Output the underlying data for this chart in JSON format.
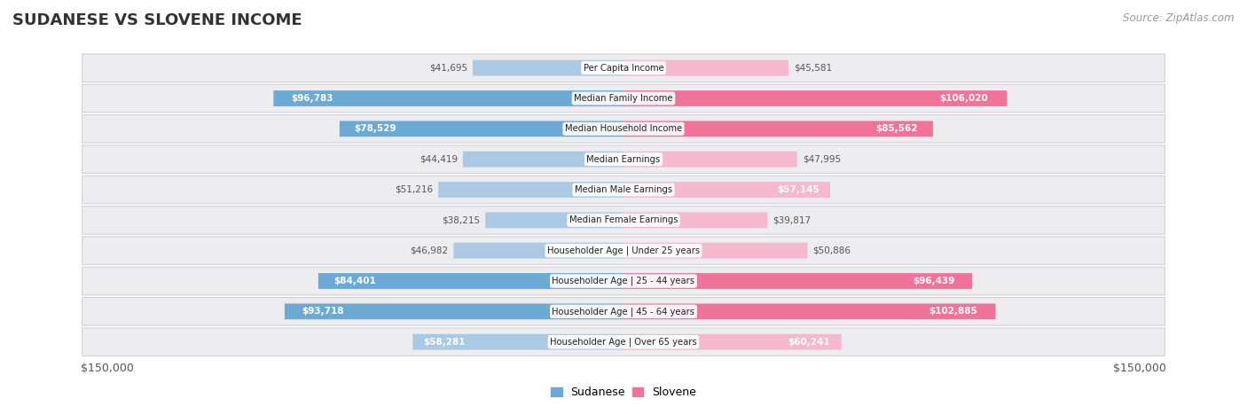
{
  "title": "SUDANESE VS SLOVENE INCOME",
  "source": "Source: ZipAtlas.com",
  "categories": [
    "Per Capita Income",
    "Median Family Income",
    "Median Household Income",
    "Median Earnings",
    "Median Male Earnings",
    "Median Female Earnings",
    "Householder Age | Under 25 years",
    "Householder Age | 25 - 44 years",
    "Householder Age | 45 - 64 years",
    "Householder Age | Over 65 years"
  ],
  "sudanese_values": [
    41695,
    96783,
    78529,
    44419,
    51216,
    38215,
    46982,
    84401,
    93718,
    58281
  ],
  "slovene_values": [
    45581,
    106020,
    85562,
    47995,
    57145,
    39817,
    50886,
    96439,
    102885,
    60241
  ],
  "sudanese_labels": [
    "$41,695",
    "$96,783",
    "$78,529",
    "$44,419",
    "$51,216",
    "$38,215",
    "$46,982",
    "$84,401",
    "$93,718",
    "$58,281"
  ],
  "slovene_labels": [
    "$45,581",
    "$106,020",
    "$85,562",
    "$47,995",
    "$57,145",
    "$39,817",
    "$50,886",
    "$96,439",
    "$102,885",
    "$60,241"
  ],
  "sudanese_color_light": "#abc8e4",
  "sudanese_color_dark": "#6aaad4",
  "slovene_color_light": "#f5b8cd",
  "slovene_color_dark": "#f0739a",
  "max_value": 150000,
  "bg_color": "#ffffff",
  "row_bg_color": "#ededf0",
  "label_color_inside": "#ffffff",
  "label_color_outside": "#555555"
}
